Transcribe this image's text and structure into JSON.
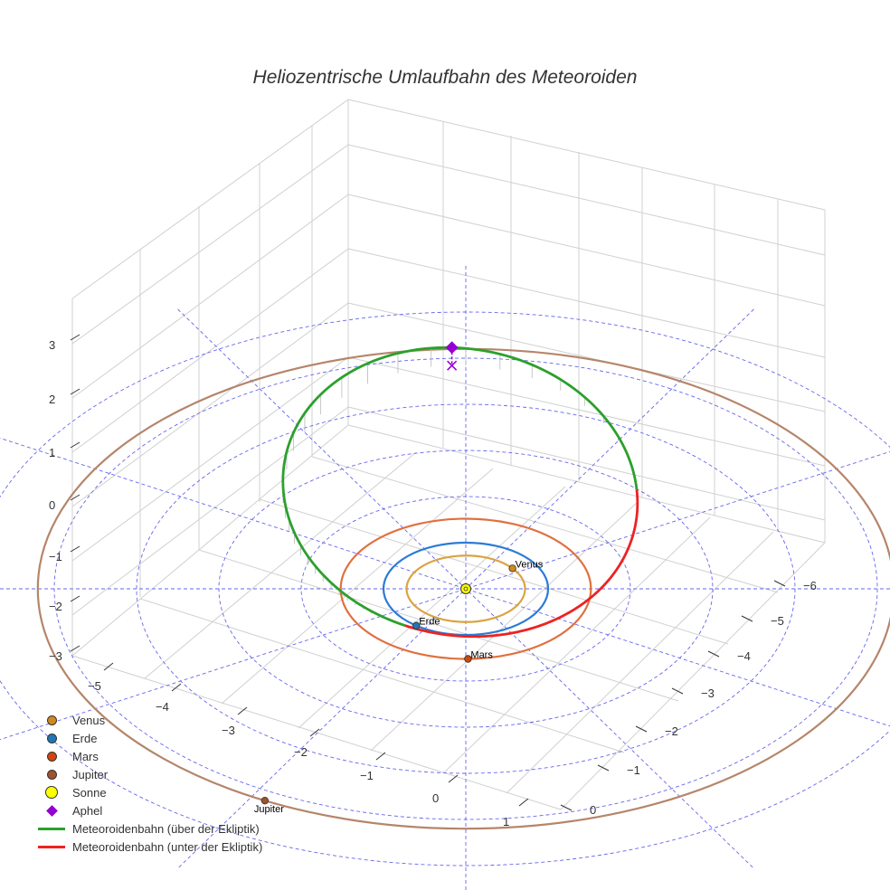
{
  "chart_data": {
    "type": "scatter3d",
    "title": "Heliozentrische Umlaufbahn des Meteoroiden",
    "axes": {
      "x_ticks": [
        "−6",
        "−5",
        "−4",
        "−3",
        "−2",
        "−1",
        "0"
      ],
      "y_ticks": [
        "−5",
        "−4",
        "−3",
        "−2",
        "−1",
        "0",
        "1"
      ],
      "z_ticks": [
        "3",
        "2",
        "1",
        "0",
        "−1",
        "−2",
        "−3"
      ]
    },
    "planets": [
      {
        "name": "Venus",
        "label": "Venus",
        "orbit_radius_au": 0.72,
        "angle_deg": 38,
        "color": "#d08a1c",
        "orbit_color": "#d9a441"
      },
      {
        "name": "Erde",
        "label": "Erde",
        "orbit_radius_au": 1.0,
        "angle_deg": 233,
        "color": "#1f77b4",
        "orbit_color": "#2b7bd6"
      },
      {
        "name": "Mars",
        "label": "Mars",
        "orbit_radius_au": 1.52,
        "angle_deg": -89,
        "color": "#d2450d",
        "orbit_color": "#e0703f"
      },
      {
        "name": "Jupiter",
        "label": "Jupiter",
        "orbit_radius_au": 5.2,
        "angle_deg": 242,
        "color": "#a0522d",
        "orbit_color": "#b5856a"
      }
    ],
    "sun": {
      "name": "Sonne",
      "color": "#ffff00"
    },
    "meteoroid": {
      "semi_major_axis_au": 2.9,
      "eccentricity": 0.67,
      "aphelion_angle_deg": 92,
      "ascending_node_deg": 46,
      "inclination_factor": 0.095,
      "above_color": "#2ca02c",
      "below_color": "#ee2222",
      "aphel_color": "#9400d3"
    },
    "grid_circles_au": [
      2,
      3,
      4,
      5,
      6
    ],
    "legend": [
      {
        "label": "Venus",
        "kind": "dot",
        "color": "#d08a1c"
      },
      {
        "label": "Erde",
        "kind": "dot",
        "color": "#1f77b4"
      },
      {
        "label": "Mars",
        "kind": "dot",
        "color": "#d2450d"
      },
      {
        "label": "Jupiter",
        "kind": "dot",
        "color": "#a0522d"
      },
      {
        "label": "Sonne",
        "kind": "sun",
        "color": "#ffff00"
      },
      {
        "label": "Aphel",
        "kind": "diamond",
        "color": "#9400d3"
      },
      {
        "label": "Meteoroidenbahn (über der Ekliptik)",
        "kind": "line",
        "color": "#2ca02c"
      },
      {
        "label": "Meteoroidenbahn (unter der Ekliptik)",
        "kind": "line",
        "color": "#ee2222"
      }
    ]
  }
}
